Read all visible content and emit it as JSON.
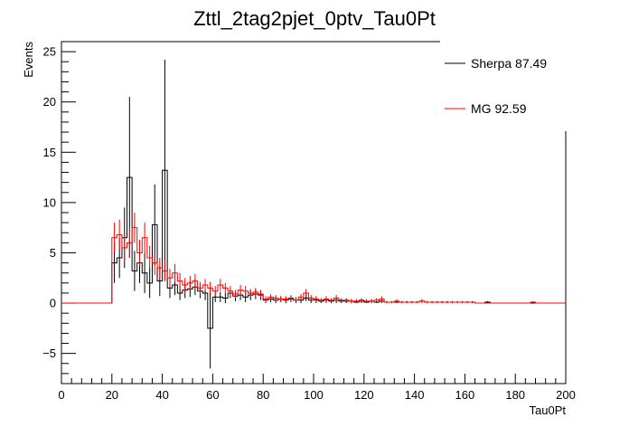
{
  "chart_data": {
    "type": "histogram",
    "title": "Zttl_2tag2pjet_0ptv_Tau0Pt",
    "xlabel": "Tau0Pt",
    "ylabel": "Events",
    "xlim": [
      0,
      200
    ],
    "ylim": [
      -8,
      26
    ],
    "x_ticks": [
      0,
      20,
      40,
      60,
      80,
      100,
      120,
      140,
      160,
      180,
      200
    ],
    "x_tick_labels": [
      "0",
      "20",
      "40",
      "60",
      "80",
      "100",
      "120",
      "140",
      "160",
      "180",
      "200"
    ],
    "y_ticks": [
      -5,
      0,
      5,
      10,
      15,
      20,
      25
    ],
    "y_tick_labels": [
      "−5",
      "0",
      "5",
      "10",
      "15",
      "20",
      "25"
    ],
    "grid": false,
    "legend_position": "top-right",
    "bin_width": 2,
    "series": [
      {
        "name": "Sherpa 87.49",
        "color": "#000000",
        "bins": [
          {
            "x": 0,
            "y": 0
          },
          {
            "x": 2,
            "y": 0
          },
          {
            "x": 4,
            "y": 0
          },
          {
            "x": 6,
            "y": 0
          },
          {
            "x": 8,
            "y": 0
          },
          {
            "x": 10,
            "y": 0
          },
          {
            "x": 12,
            "y": 0
          },
          {
            "x": 14,
            "y": 0
          },
          {
            "x": 16,
            "y": 0
          },
          {
            "x": 18,
            "y": 0
          },
          {
            "x": 20,
            "y": 4.0,
            "err": 2.0
          },
          {
            "x": 22,
            "y": 4.5,
            "err": 2.0
          },
          {
            "x": 24,
            "y": 6.5,
            "err": 3.0
          },
          {
            "x": 26,
            "y": 12.5,
            "err": 8.0
          },
          {
            "x": 28,
            "y": 3.2,
            "err": 2.0
          },
          {
            "x": 30,
            "y": 4.0,
            "err": 2.0
          },
          {
            "x": 32,
            "y": 3.0,
            "err": 2.0
          },
          {
            "x": 34,
            "y": 2.0,
            "err": 1.5
          },
          {
            "x": 36,
            "y": 7.8,
            "err": 4.0
          },
          {
            "x": 38,
            "y": 2.2,
            "err": 1.5
          },
          {
            "x": 40,
            "y": 13.2,
            "err": 11.0
          },
          {
            "x": 42,
            "y": 1.5,
            "err": 1.0
          },
          {
            "x": 44,
            "y": 1.8,
            "err": 1.0
          },
          {
            "x": 46,
            "y": 1.0,
            "err": 0.7
          },
          {
            "x": 48,
            "y": 1.3,
            "err": 0.8
          },
          {
            "x": 50,
            "y": 1.4,
            "err": 0.8
          },
          {
            "x": 52,
            "y": 1.6,
            "err": 0.8
          },
          {
            "x": 54,
            "y": 1.2,
            "err": 0.7
          },
          {
            "x": 56,
            "y": 1.0,
            "err": 0.7
          },
          {
            "x": 58,
            "y": -2.5,
            "err": 4.0
          },
          {
            "x": 60,
            "y": 0.6,
            "err": 0.5
          },
          {
            "x": 62,
            "y": 0.6,
            "err": 0.5
          },
          {
            "x": 64,
            "y": 0.5,
            "err": 0.5
          },
          {
            "x": 66,
            "y": 1.0,
            "err": 0.5
          },
          {
            "x": 68,
            "y": 0.7,
            "err": 0.5
          },
          {
            "x": 70,
            "y": 0.8,
            "err": 0.5
          },
          {
            "x": 72,
            "y": 0.6,
            "err": 0.5
          },
          {
            "x": 74,
            "y": 0.8,
            "err": 0.5
          },
          {
            "x": 76,
            "y": 0.9,
            "err": 0.5
          },
          {
            "x": 78,
            "y": 0.8,
            "err": 0.5
          },
          {
            "x": 80,
            "y": 0.3,
            "err": 0.3
          },
          {
            "x": 82,
            "y": 0.4,
            "err": 0.3
          },
          {
            "x": 84,
            "y": 0.3,
            "err": 0.3
          },
          {
            "x": 86,
            "y": 0.4,
            "err": 0.3
          },
          {
            "x": 88,
            "y": 0.3,
            "err": 0.3
          },
          {
            "x": 90,
            "y": 0.4,
            "err": 0.3
          },
          {
            "x": 92,
            "y": 0.3,
            "err": 0.3
          },
          {
            "x": 94,
            "y": 0.3,
            "err": 0.3
          },
          {
            "x": 96,
            "y": 0.5,
            "err": 0.3
          },
          {
            "x": 98,
            "y": 0.3,
            "err": 0.3
          },
          {
            "x": 100,
            "y": 0.3,
            "err": 0.3
          },
          {
            "x": 102,
            "y": 0.2,
            "err": 0.2
          },
          {
            "x": 104,
            "y": 0.3,
            "err": 0.3
          },
          {
            "x": 106,
            "y": 0.2,
            "err": 0.2
          },
          {
            "x": 108,
            "y": 0.3,
            "err": 0.3
          },
          {
            "x": 110,
            "y": 0.2,
            "err": 0.2
          },
          {
            "x": 112,
            "y": 0.2,
            "err": 0.2
          },
          {
            "x": 114,
            "y": 0.2,
            "err": 0.2
          },
          {
            "x": 116,
            "y": 0.1,
            "err": 0.1
          },
          {
            "x": 118,
            "y": 0.2,
            "err": 0.2
          },
          {
            "x": 120,
            "y": 0.1,
            "err": 0.1
          },
          {
            "x": 122,
            "y": 0.2,
            "err": 0.2
          },
          {
            "x": 124,
            "y": 0.1,
            "err": 0.1
          },
          {
            "x": 126,
            "y": 0.2,
            "err": 0.2
          },
          {
            "x": 128,
            "y": 0.1,
            "err": 0.1
          },
          {
            "x": 130,
            "y": 0.1,
            "err": 0.1
          },
          {
            "x": 132,
            "y": 0.1,
            "err": 0.1
          },
          {
            "x": 134,
            "y": 0.1,
            "err": 0.1
          },
          {
            "x": 136,
            "y": 0.1,
            "err": 0.1
          },
          {
            "x": 138,
            "y": 0.1,
            "err": 0.1
          },
          {
            "x": 140,
            "y": 0.1,
            "err": 0.1
          },
          {
            "x": 142,
            "y": 0.2,
            "err": 0.2
          },
          {
            "x": 144,
            "y": 0.1,
            "err": 0.1
          },
          {
            "x": 146,
            "y": 0.1,
            "err": 0.1
          },
          {
            "x": 148,
            "y": 0.1,
            "err": 0.1
          },
          {
            "x": 150,
            "y": 0.1,
            "err": 0.1
          },
          {
            "x": 152,
            "y": 0.1,
            "err": 0.1
          },
          {
            "x": 154,
            "y": 0.1,
            "err": 0.1
          },
          {
            "x": 156,
            "y": 0.1,
            "err": 0.1
          },
          {
            "x": 158,
            "y": 0.1,
            "err": 0.1
          },
          {
            "x": 160,
            "y": 0.1,
            "err": 0.1
          },
          {
            "x": 162,
            "y": 0.1,
            "err": 0.1
          },
          {
            "x": 164,
            "y": 0.0
          },
          {
            "x": 166,
            "y": 0.0
          },
          {
            "x": 168,
            "y": 0.1,
            "err": 0.1
          },
          {
            "x": 170,
            "y": 0.0
          },
          {
            "x": 172,
            "y": 0.0
          },
          {
            "x": 174,
            "y": 0.0
          },
          {
            "x": 176,
            "y": 0.0
          },
          {
            "x": 178,
            "y": 0.0
          },
          {
            "x": 180,
            "y": 0.0
          },
          {
            "x": 182,
            "y": 0.0
          },
          {
            "x": 184,
            "y": 0.0
          },
          {
            "x": 186,
            "y": 0.0
          },
          {
            "x": 188,
            "y": 0.0
          },
          {
            "x": 190,
            "y": 0.0
          },
          {
            "x": 192,
            "y": 0.0
          },
          {
            "x": 194,
            "y": 0.0
          },
          {
            "x": 196,
            "y": 0.0
          },
          {
            "x": 198,
            "y": 0.0
          }
        ]
      },
      {
        "name": "MG 92.59",
        "color": "#ff0000",
        "bins": [
          {
            "x": 0,
            "y": 0
          },
          {
            "x": 2,
            "y": 0
          },
          {
            "x": 4,
            "y": 0
          },
          {
            "x": 6,
            "y": 0
          },
          {
            "x": 8,
            "y": 0
          },
          {
            "x": 10,
            "y": 0
          },
          {
            "x": 12,
            "y": 0
          },
          {
            "x": 14,
            "y": 0
          },
          {
            "x": 16,
            "y": 0
          },
          {
            "x": 18,
            "y": 0
          },
          {
            "x": 20,
            "y": 6.5,
            "err": 1.5
          },
          {
            "x": 22,
            "y": 6.8,
            "err": 1.5
          },
          {
            "x": 24,
            "y": 5.5,
            "err": 1.5
          },
          {
            "x": 26,
            "y": 6.0,
            "err": 1.5
          },
          {
            "x": 28,
            "y": 7.5,
            "err": 1.5
          },
          {
            "x": 30,
            "y": 5.0,
            "err": 1.3
          },
          {
            "x": 32,
            "y": 6.5,
            "err": 1.5
          },
          {
            "x": 34,
            "y": 4.5,
            "err": 1.2
          },
          {
            "x": 36,
            "y": 4.0,
            "err": 1.2
          },
          {
            "x": 38,
            "y": 3.5,
            "err": 1.0
          },
          {
            "x": 40,
            "y": 3.2,
            "err": 1.0
          },
          {
            "x": 42,
            "y": 2.5,
            "err": 0.9
          },
          {
            "x": 44,
            "y": 3.0,
            "err": 0.9
          },
          {
            "x": 46,
            "y": 2.2,
            "err": 0.8
          },
          {
            "x": 48,
            "y": 1.8,
            "err": 0.7
          },
          {
            "x": 50,
            "y": 2.0,
            "err": 0.7
          },
          {
            "x": 52,
            "y": 2.2,
            "err": 0.7
          },
          {
            "x": 54,
            "y": 1.5,
            "err": 0.6
          },
          {
            "x": 56,
            "y": 1.8,
            "err": 0.6
          },
          {
            "x": 58,
            "y": 1.5,
            "err": 0.6
          },
          {
            "x": 60,
            "y": 1.2,
            "err": 0.5
          },
          {
            "x": 62,
            "y": 1.8,
            "err": 0.6
          },
          {
            "x": 64,
            "y": 1.5,
            "err": 0.5
          },
          {
            "x": 66,
            "y": 1.2,
            "err": 0.5
          },
          {
            "x": 68,
            "y": 0.9,
            "err": 0.4
          },
          {
            "x": 70,
            "y": 1.3,
            "err": 0.5
          },
          {
            "x": 72,
            "y": 1.2,
            "err": 0.5
          },
          {
            "x": 74,
            "y": 1.0,
            "err": 0.4
          },
          {
            "x": 76,
            "y": 1.1,
            "err": 0.4
          },
          {
            "x": 78,
            "y": 0.9,
            "err": 0.4
          },
          {
            "x": 80,
            "y": 0.4,
            "err": 0.3
          },
          {
            "x": 82,
            "y": 0.6,
            "err": 0.3
          },
          {
            "x": 84,
            "y": 0.5,
            "err": 0.3
          },
          {
            "x": 86,
            "y": 0.4,
            "err": 0.3
          },
          {
            "x": 88,
            "y": 0.4,
            "err": 0.3
          },
          {
            "x": 90,
            "y": 0.5,
            "err": 0.3
          },
          {
            "x": 92,
            "y": 0.3,
            "err": 0.2
          },
          {
            "x": 94,
            "y": 0.6,
            "err": 0.3
          },
          {
            "x": 96,
            "y": 1.0,
            "err": 0.4
          },
          {
            "x": 98,
            "y": 0.5,
            "err": 0.3
          },
          {
            "x": 100,
            "y": 0.4,
            "err": 0.3
          },
          {
            "x": 102,
            "y": 0.3,
            "err": 0.2
          },
          {
            "x": 104,
            "y": 0.4,
            "err": 0.3
          },
          {
            "x": 106,
            "y": 0.3,
            "err": 0.2
          },
          {
            "x": 108,
            "y": 0.5,
            "err": 0.3
          },
          {
            "x": 110,
            "y": 0.3,
            "err": 0.2
          },
          {
            "x": 112,
            "y": 0.3,
            "err": 0.2
          },
          {
            "x": 114,
            "y": 0.2,
            "err": 0.2
          },
          {
            "x": 116,
            "y": 0.2,
            "err": 0.2
          },
          {
            "x": 118,
            "y": 0.3,
            "err": 0.2
          },
          {
            "x": 120,
            "y": 0.2,
            "err": 0.2
          },
          {
            "x": 122,
            "y": 0.2,
            "err": 0.2
          },
          {
            "x": 124,
            "y": 0.3,
            "err": 0.2
          },
          {
            "x": 126,
            "y": 0.4,
            "err": 0.3
          },
          {
            "x": 128,
            "y": 0.1,
            "err": 0.1
          },
          {
            "x": 130,
            "y": 0.1,
            "err": 0.1
          },
          {
            "x": 132,
            "y": 0.2,
            "err": 0.2
          },
          {
            "x": 134,
            "y": 0.1,
            "err": 0.1
          },
          {
            "x": 136,
            "y": 0.1,
            "err": 0.1
          },
          {
            "x": 138,
            "y": 0.1,
            "err": 0.1
          },
          {
            "x": 140,
            "y": 0.1,
            "err": 0.1
          },
          {
            "x": 142,
            "y": 0.2,
            "err": 0.2
          },
          {
            "x": 144,
            "y": 0.1,
            "err": 0.1
          },
          {
            "x": 146,
            "y": 0.1,
            "err": 0.1
          },
          {
            "x": 148,
            "y": 0.1,
            "err": 0.1
          },
          {
            "x": 150,
            "y": 0.1,
            "err": 0.1
          },
          {
            "x": 152,
            "y": 0.1,
            "err": 0.1
          },
          {
            "x": 154,
            "y": 0.1,
            "err": 0.1
          },
          {
            "x": 156,
            "y": 0.1,
            "err": 0.1
          },
          {
            "x": 158,
            "y": 0.1,
            "err": 0.1
          },
          {
            "x": 160,
            "y": 0.1,
            "err": 0.1
          },
          {
            "x": 162,
            "y": 0.1,
            "err": 0.1
          },
          {
            "x": 164,
            "y": 0.0
          },
          {
            "x": 166,
            "y": 0.0
          },
          {
            "x": 168,
            "y": 0.0
          },
          {
            "x": 170,
            "y": 0.0
          },
          {
            "x": 172,
            "y": 0.0
          },
          {
            "x": 174,
            "y": 0.0
          },
          {
            "x": 176,
            "y": 0.0
          },
          {
            "x": 178,
            "y": 0.0
          },
          {
            "x": 180,
            "y": 0.0
          },
          {
            "x": 182,
            "y": 0.0
          },
          {
            "x": 184,
            "y": 0.0
          },
          {
            "x": 186,
            "y": 0.1,
            "err": 0.1
          },
          {
            "x": 188,
            "y": 0.0
          },
          {
            "x": 190,
            "y": 0.0
          },
          {
            "x": 192,
            "y": 0.0
          },
          {
            "x": 194,
            "y": 0.0
          },
          {
            "x": 196,
            "y": 0.0
          },
          {
            "x": 198,
            "y": 0.0
          }
        ]
      }
    ]
  }
}
